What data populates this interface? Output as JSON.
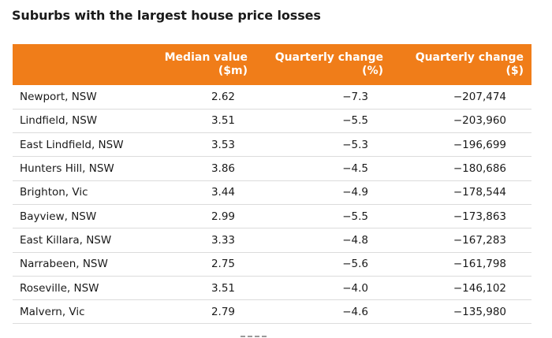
{
  "chart_data": {
    "type": "table",
    "title": "Suburbs with the largest house price losses",
    "columns": [
      {
        "key": "suburb",
        "label_lines": [
          "",
          ""
        ]
      },
      {
        "key": "median",
        "label_lines": [
          "Median value",
          "($m)"
        ]
      },
      {
        "key": "qpct",
        "label_lines": [
          "Quarterly change",
          "(%)"
        ]
      },
      {
        "key": "qdollar",
        "label_lines": [
          "Quarterly change",
          "($)"
        ]
      }
    ],
    "rows": [
      {
        "suburb": "Newport, NSW",
        "median": "2.62",
        "qpct": "−7.3",
        "qdollar": "−207,474"
      },
      {
        "suburb": "Lindfield, NSW",
        "median": "3.51",
        "qpct": "−5.5",
        "qdollar": "−203,960"
      },
      {
        "suburb": "East Lindfield, NSW",
        "median": "3.53",
        "qpct": "−5.3",
        "qdollar": "−196,699"
      },
      {
        "suburb": "Hunters Hill, NSW",
        "median": "3.86",
        "qpct": "−4.5",
        "qdollar": "−180,686"
      },
      {
        "suburb": "Brighton, Vic",
        "median": "3.44",
        "qpct": "−4.9",
        "qdollar": "−178,544"
      },
      {
        "suburb": "Bayview, NSW",
        "median": "2.99",
        "qpct": "−5.5",
        "qdollar": "−173,863"
      },
      {
        "suburb": "East Killara, NSW",
        "median": "3.33",
        "qpct": "−4.8",
        "qdollar": "−167,283"
      },
      {
        "suburb": "Narrabeen, NSW",
        "median": "2.75",
        "qpct": "−5.6",
        "qdollar": "−161,798"
      },
      {
        "suburb": "Roseville, NSW",
        "median": "3.51",
        "qpct": "−4.0",
        "qdollar": "−146,102"
      },
      {
        "suburb": "Malvern, Vic",
        "median": "2.79",
        "qpct": "−4.6",
        "qdollar": "−135,980"
      }
    ]
  },
  "colors": {
    "header_bg": "#f07d19",
    "header_text": "#ffffff",
    "row_border": "#dcdcdc",
    "text": "#1a1a1a"
  }
}
